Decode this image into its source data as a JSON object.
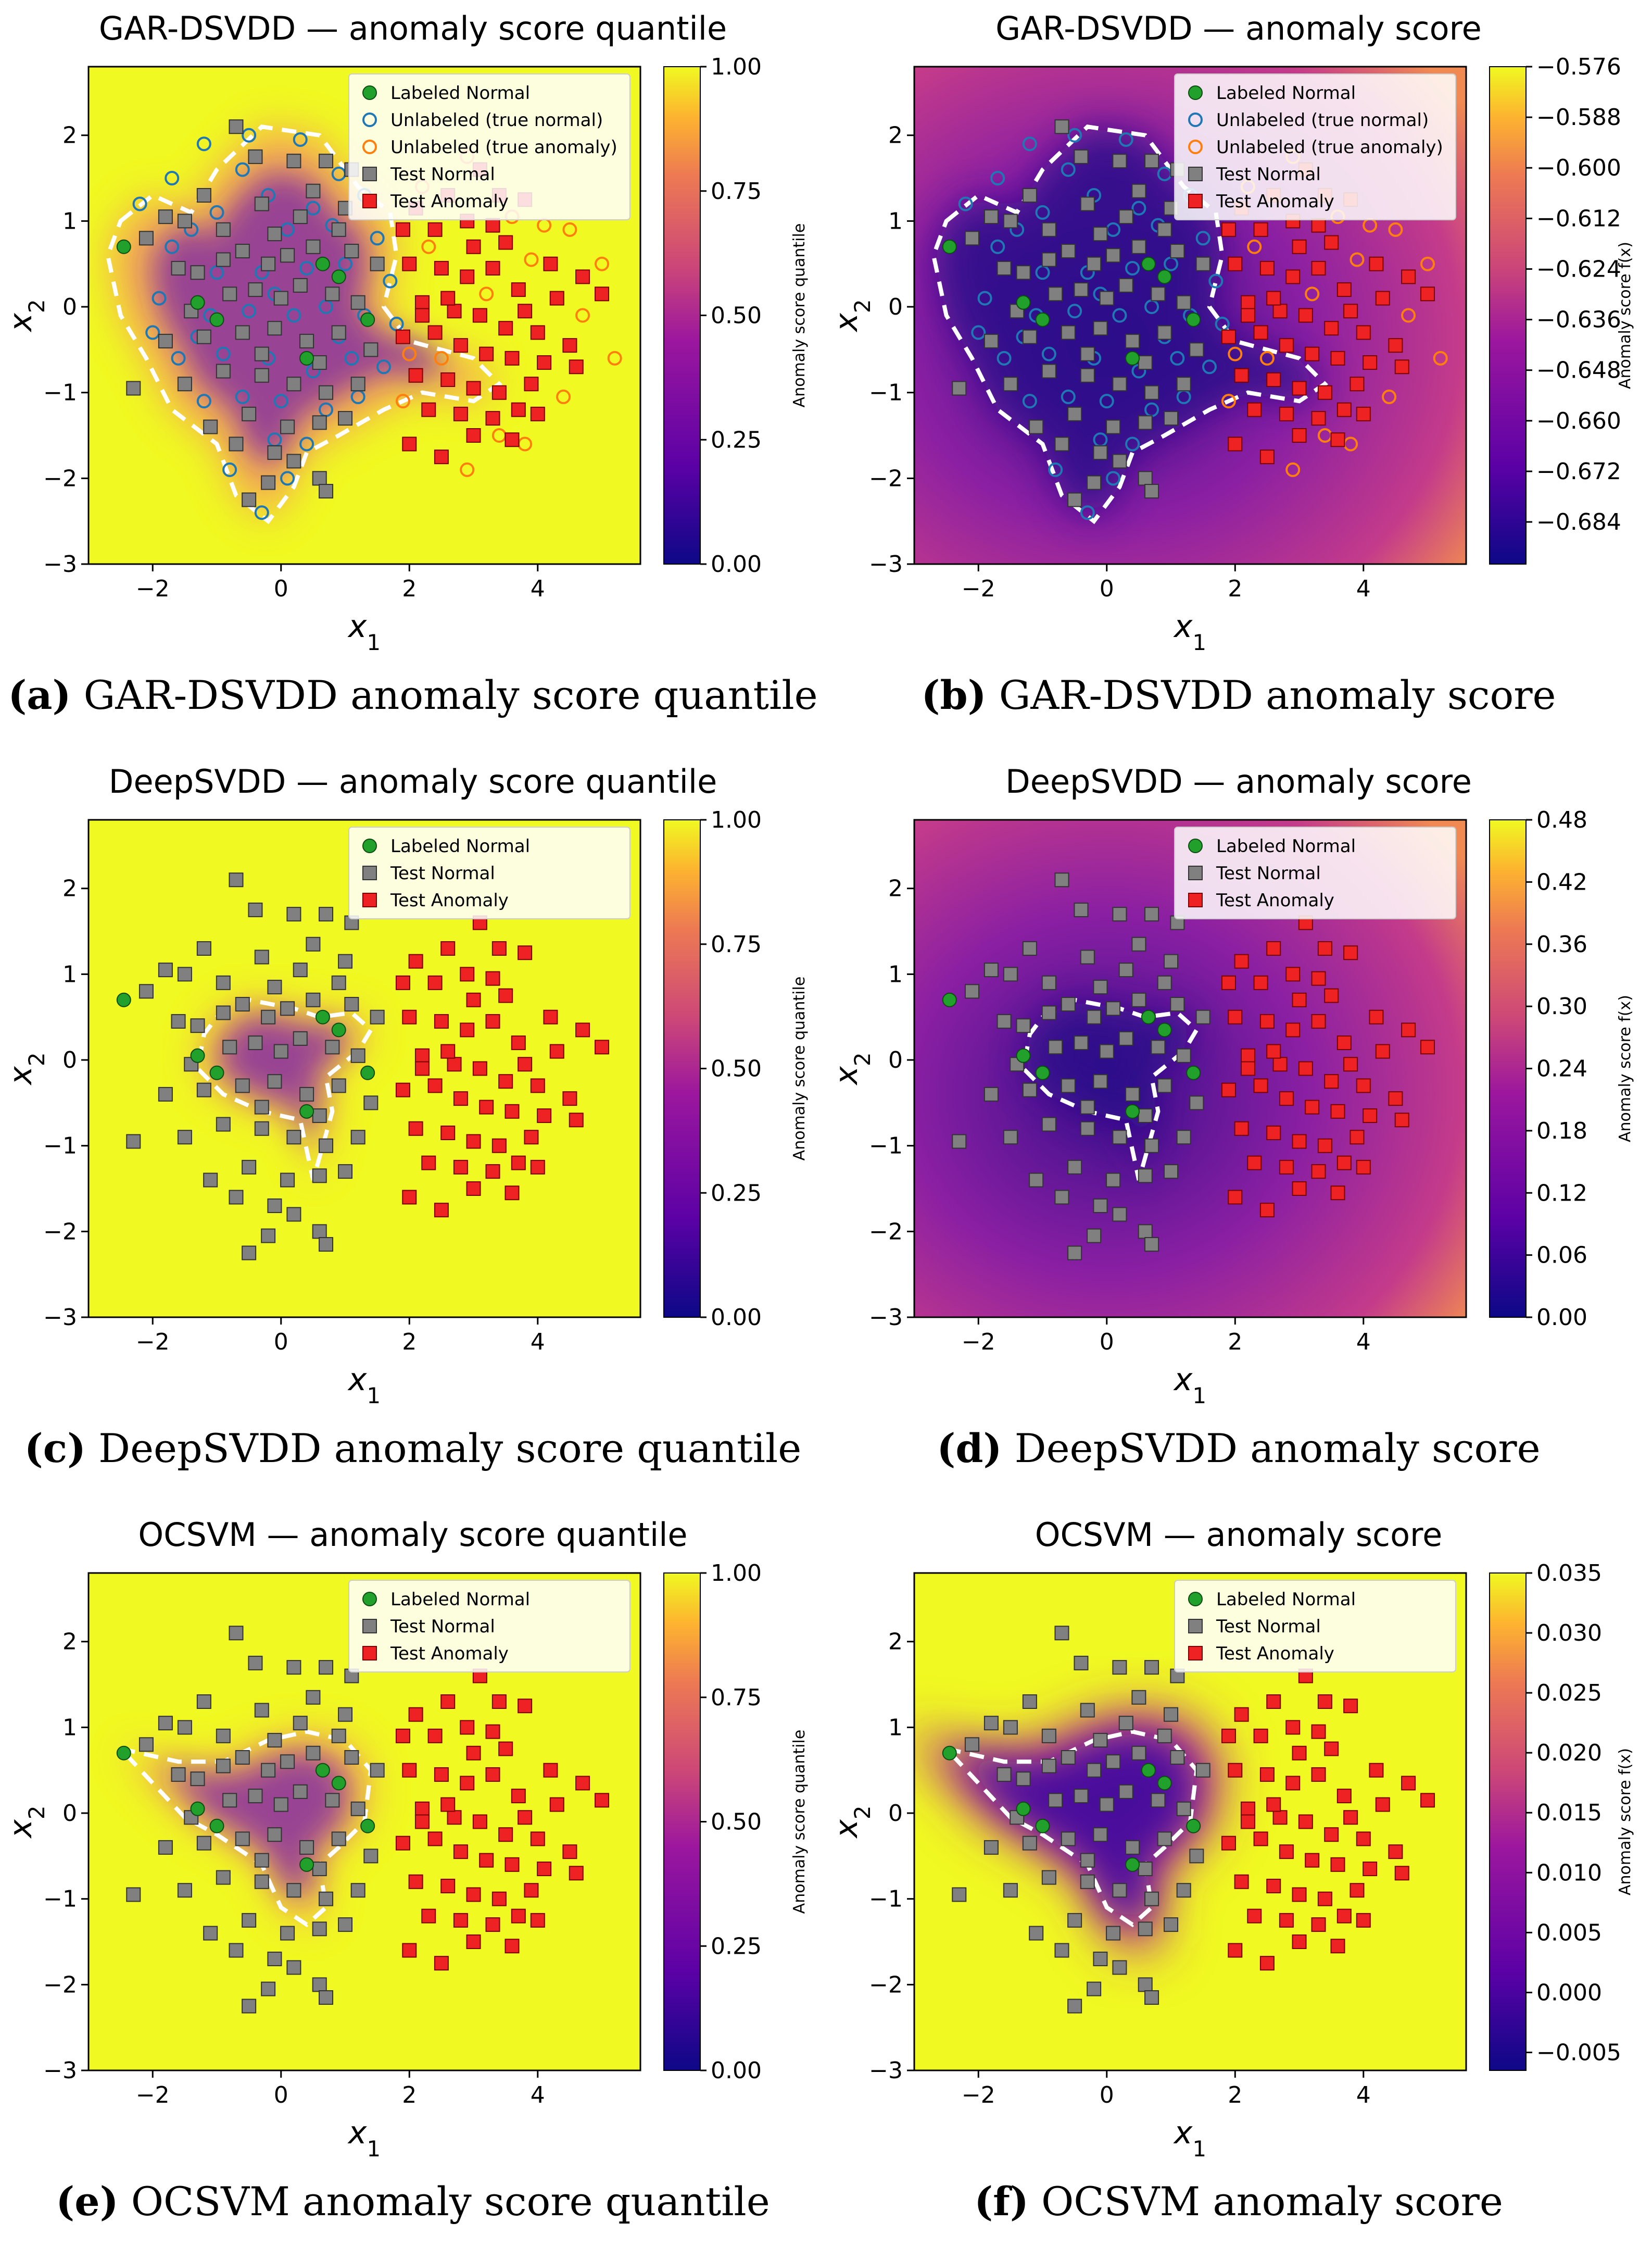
{
  "panels": [
    {
      "id": "a",
      "caption_letter": "a",
      "caption_text": " GAR-DSVDD anomaly score quantile",
      "title": "GAR-DSVDD — anomaly score quantile",
      "mode": "quantile",
      "unlabeled": true,
      "shape": "gar"
    },
    {
      "id": "b",
      "caption_letter": "b",
      "caption_text": " GAR-DSVDD anomaly score",
      "title": "GAR-DSVDD — anomaly score",
      "mode": "score",
      "unlabeled": true,
      "shape": "gar"
    },
    {
      "id": "c",
      "caption_letter": "c",
      "caption_text": " DeepSVDD anomaly score quantile",
      "title": "DeepSVDD — anomaly score quantile",
      "mode": "quantile",
      "unlabeled": false,
      "shape": "deep"
    },
    {
      "id": "d",
      "caption_letter": "d",
      "caption_text": " DeepSVDD anomaly score",
      "title": "DeepSVDD — anomaly score",
      "mode": "score",
      "unlabeled": false,
      "shape": "deep"
    },
    {
      "id": "e",
      "caption_letter": "e",
      "caption_text": " OCSVM anomaly score quantile",
      "title": "OCSVM — anomaly score quantile",
      "mode": "quantile",
      "unlabeled": false,
      "shape": "ocsvm"
    },
    {
      "id": "f",
      "caption_letter": "f",
      "caption_text": " OCSVM anomaly score",
      "title": "OCSVM — anomaly score",
      "mode": "score",
      "unlabeled": false,
      "shape": "ocsvm"
    }
  ],
  "chart_data": [
    {
      "type": "scatter",
      "title": "GAR-DSVDD — anomaly score quantile",
      "xlabel": "x1",
      "ylabel": "x2",
      "xlim": [
        -3,
        5.6
      ],
      "ylim": [
        -3,
        2.8
      ],
      "xticks": [
        -2,
        0,
        2,
        4
      ],
      "yticks": [
        -3,
        -2,
        -1,
        0,
        1,
        2
      ],
      "colorbar": {
        "label": "Anomaly score quantile",
        "range": [
          0,
          1
        ],
        "ticks": [
          "0.00",
          "0.25",
          "0.50",
          "0.75",
          "1.00"
        ]
      },
      "legend": [
        "Labeled Normal",
        "Unlabeled (true normal)",
        "Unlabeled (true anomaly)",
        "Test Normal",
        "Test Anomaly"
      ]
    },
    {
      "type": "scatter",
      "title": "GAR-DSVDD — anomaly score",
      "xlabel": "x1",
      "ylabel": "x2",
      "xlim": [
        -3,
        5.6
      ],
      "ylim": [
        -3,
        2.8
      ],
      "xticks": [
        -2,
        0,
        2,
        4
      ],
      "yticks": [
        -3,
        -2,
        -1,
        0,
        1,
        2
      ],
      "colorbar": {
        "label": "Anomaly score f(x)",
        "range": [
          -0.694,
          -0.576
        ],
        "ticks": [
          "−0.684",
          "−0.672",
          "−0.660",
          "−0.648",
          "−0.636",
          "−0.624",
          "−0.612",
          "−0.600",
          "−0.588",
          "−0.576"
        ]
      },
      "legend": [
        "Labeled Normal",
        "Unlabeled (true normal)",
        "Unlabeled (true anomaly)",
        "Test Normal",
        "Test Anomaly"
      ]
    },
    {
      "type": "scatter",
      "title": "DeepSVDD — anomaly score quantile",
      "xlabel": "x1",
      "ylabel": "x2",
      "xlim": [
        -3,
        5.6
      ],
      "ylim": [
        -3,
        2.8
      ],
      "xticks": [
        -2,
        0,
        2,
        4
      ],
      "yticks": [
        -3,
        -2,
        -1,
        0,
        1,
        2
      ],
      "colorbar": {
        "label": "Anomaly score quantile",
        "range": [
          0,
          1
        ],
        "ticks": [
          "0.00",
          "0.25",
          "0.50",
          "0.75",
          "1.00"
        ]
      },
      "legend": [
        "Labeled Normal",
        "Test Normal",
        "Test Anomaly"
      ]
    },
    {
      "type": "scatter",
      "title": "DeepSVDD — anomaly score",
      "xlabel": "x1",
      "ylabel": "x2",
      "xlim": [
        -3,
        5.6
      ],
      "ylim": [
        -3,
        2.8
      ],
      "xticks": [
        -2,
        0,
        2,
        4
      ],
      "yticks": [
        -3,
        -2,
        -1,
        0,
        1,
        2
      ],
      "colorbar": {
        "label": "Anomaly score f(x)",
        "range": [
          0,
          0.48
        ],
        "ticks": [
          "0.00",
          "0.06",
          "0.12",
          "0.18",
          "0.24",
          "0.30",
          "0.36",
          "0.42",
          "0.48"
        ]
      },
      "legend": [
        "Labeled Normal",
        "Test Normal",
        "Test Anomaly"
      ]
    },
    {
      "type": "scatter",
      "title": "OCSVM — anomaly score quantile",
      "xlabel": "x1",
      "ylabel": "x2",
      "xlim": [
        -3,
        5.6
      ],
      "ylim": [
        -3,
        2.8
      ],
      "xticks": [
        -2,
        0,
        2,
        4
      ],
      "yticks": [
        -3,
        -2,
        -1,
        0,
        1,
        2
      ],
      "colorbar": {
        "label": "Anomaly score quantile",
        "range": [
          0,
          1
        ],
        "ticks": [
          "0.00",
          "0.25",
          "0.50",
          "0.75",
          "1.00"
        ]
      },
      "legend": [
        "Labeled Normal",
        "Test Normal",
        "Test Anomaly"
      ]
    },
    {
      "type": "scatter",
      "title": "OCSVM — anomaly score",
      "xlabel": "x1",
      "ylabel": "x2",
      "xlim": [
        -3,
        5.6
      ],
      "ylim": [
        -3,
        2.8
      ],
      "xticks": [
        -2,
        0,
        2,
        4
      ],
      "yticks": [
        -3,
        -2,
        -1,
        0,
        1,
        2
      ],
      "colorbar": {
        "label": "Anomaly score f(x)",
        "range": [
          -0.0065,
          0.035
        ],
        "ticks": [
          "−0.005",
          "0.000",
          "0.005",
          "0.010",
          "0.015",
          "0.020",
          "0.025",
          "0.030",
          "0.035"
        ]
      },
      "legend": [
        "Labeled Normal",
        "Test Normal",
        "Test Anomaly"
      ]
    }
  ],
  "points": {
    "labeled_normal": [
      [
        -2.45,
        0.7
      ],
      [
        -1.3,
        0.05
      ],
      [
        0.4,
        -0.6
      ],
      [
        0.65,
        0.5
      ],
      [
        1.35,
        -0.15
      ],
      [
        -1.0,
        -0.15
      ],
      [
        0.9,
        0.35
      ]
    ],
    "test_normal": [
      [
        -0.7,
        2.1
      ],
      [
        -1.8,
        1.05
      ],
      [
        -2.1,
        0.8
      ],
      [
        -1.5,
        1.0
      ],
      [
        -1.2,
        1.3
      ],
      [
        -0.4,
        1.75
      ],
      [
        0.2,
        1.7
      ],
      [
        0.7,
        1.7
      ],
      [
        -0.3,
        1.2
      ],
      [
        0.3,
        1.05
      ],
      [
        1.1,
        1.6
      ],
      [
        1.0,
        1.15
      ],
      [
        -1.6,
        0.45
      ],
      [
        -0.9,
        0.55
      ],
      [
        -0.6,
        0.65
      ],
      [
        -0.2,
        0.5
      ],
      [
        0.1,
        0.6
      ],
      [
        0.5,
        0.7
      ],
      [
        1.1,
        0.65
      ],
      [
        1.5,
        0.5
      ],
      [
        -1.4,
        -0.05
      ],
      [
        -0.8,
        0.15
      ],
      [
        -0.4,
        0.2
      ],
      [
        0.0,
        0.1
      ],
      [
        0.3,
        0.25
      ],
      [
        0.8,
        0.15
      ],
      [
        1.2,
        0.05
      ],
      [
        -1.8,
        -0.4
      ],
      [
        -1.2,
        -0.35
      ],
      [
        -0.6,
        -0.3
      ],
      [
        -0.1,
        -0.25
      ],
      [
        0.4,
        -0.4
      ],
      [
        0.9,
        -0.3
      ],
      [
        1.4,
        -0.5
      ],
      [
        -2.3,
        -0.95
      ],
      [
        -1.5,
        -0.9
      ],
      [
        -0.9,
        -0.75
      ],
      [
        -0.3,
        -0.8
      ],
      [
        0.2,
        -0.9
      ],
      [
        0.7,
        -1.0
      ],
      [
        1.2,
        -0.9
      ],
      [
        -1.1,
        -1.4
      ],
      [
        -0.5,
        -1.25
      ],
      [
        0.1,
        -1.4
      ],
      [
        0.6,
        -1.35
      ],
      [
        1.0,
        -1.3
      ],
      [
        -0.7,
        -1.6
      ],
      [
        -0.1,
        -1.7
      ],
      [
        0.6,
        -2.0
      ],
      [
        0.7,
        -2.15
      ],
      [
        -0.5,
        -2.25
      ],
      [
        -0.2,
        -2.05
      ],
      [
        0.2,
        -1.8
      ],
      [
        -0.9,
        0.9
      ],
      [
        0.5,
        1.35
      ],
      [
        -0.3,
        -0.55
      ],
      [
        0.6,
        -0.65
      ],
      [
        -1.3,
        0.4
      ],
      [
        -0.1,
        0.85
      ],
      [
        0.9,
        0.9
      ]
    ],
    "test_anomaly": [
      [
        3.1,
        1.6
      ],
      [
        2.6,
        1.3
      ],
      [
        2.1,
        1.15
      ],
      [
        3.4,
        1.3
      ],
      [
        3.8,
        1.25
      ],
      [
        2.4,
        0.9
      ],
      [
        3.0,
        0.7
      ],
      [
        3.5,
        0.75
      ],
      [
        4.2,
        0.5
      ],
      [
        4.7,
        0.35
      ],
      [
        5.0,
        0.15
      ],
      [
        2.0,
        0.5
      ],
      [
        2.5,
        0.45
      ],
      [
        2.9,
        0.35
      ],
      [
        3.3,
        0.45
      ],
      [
        3.7,
        0.2
      ],
      [
        4.3,
        0.1
      ],
      [
        2.2,
        0.05
      ],
      [
        2.7,
        -0.05
      ],
      [
        3.1,
        -0.1
      ],
      [
        3.5,
        -0.25
      ],
      [
        4.0,
        -0.3
      ],
      [
        4.5,
        -0.45
      ],
      [
        1.9,
        -0.35
      ],
      [
        2.4,
        -0.3
      ],
      [
        2.8,
        -0.45
      ],
      [
        3.2,
        -0.55
      ],
      [
        3.6,
        -0.6
      ],
      [
        4.1,
        -0.65
      ],
      [
        4.6,
        -0.7
      ],
      [
        2.1,
        -0.8
      ],
      [
        2.6,
        -0.85
      ],
      [
        3.0,
        -0.95
      ],
      [
        3.4,
        -1.0
      ],
      [
        3.9,
        -0.9
      ],
      [
        2.3,
        -1.2
      ],
      [
        2.8,
        -1.25
      ],
      [
        3.3,
        -1.3
      ],
      [
        3.7,
        -1.2
      ],
      [
        2.0,
        -1.6
      ],
      [
        2.5,
        -1.75
      ],
      [
        3.0,
        -1.5
      ],
      [
        3.6,
        -1.55
      ],
      [
        4.0,
        -1.25
      ],
      [
        1.9,
        0.9
      ],
      [
        2.9,
        1.0
      ],
      [
        3.3,
        0.95
      ],
      [
        2.2,
        -0.1
      ],
      [
        3.8,
        -0.05
      ],
      [
        2.6,
        0.1
      ]
    ],
    "unlabeled_normal": [
      [
        -1.7,
        1.5
      ],
      [
        -1.2,
        1.9
      ],
      [
        -0.5,
        2.0
      ],
      [
        0.3,
        1.95
      ],
      [
        0.9,
        1.55
      ],
      [
        -1.0,
        1.1
      ],
      [
        -0.2,
        1.3
      ],
      [
        0.5,
        1.15
      ],
      [
        1.3,
        1.3
      ],
      [
        -1.7,
        0.7
      ],
      [
        -1.0,
        0.4
      ],
      [
        -0.3,
        0.4
      ],
      [
        0.4,
        0.45
      ],
      [
        1.0,
        0.5
      ],
      [
        1.5,
        0.8
      ],
      [
        -1.9,
        0.1
      ],
      [
        -1.1,
        -0.1
      ],
      [
        -0.5,
        -0.05
      ],
      [
        0.2,
        -0.1
      ],
      [
        0.7,
        0.0
      ],
      [
        1.3,
        -0.1
      ],
      [
        1.8,
        -0.2
      ],
      [
        -1.6,
        -0.6
      ],
      [
        -0.9,
        -0.55
      ],
      [
        -0.2,
        -0.6
      ],
      [
        0.5,
        -0.75
      ],
      [
        1.1,
        -0.6
      ],
      [
        1.6,
        -0.7
      ],
      [
        -1.2,
        -1.1
      ],
      [
        -0.6,
        -1.05
      ],
      [
        0.0,
        -1.1
      ],
      [
        0.7,
        -1.2
      ],
      [
        1.2,
        -1.05
      ],
      [
        -0.8,
        -1.9
      ],
      [
        -0.1,
        -1.55
      ],
      [
        0.4,
        -1.6
      ],
      [
        -0.3,
        -2.4
      ],
      [
        0.1,
        -2.0
      ],
      [
        -1.4,
        0.9
      ],
      [
        -0.6,
        1.6
      ],
      [
        0.1,
        0.9
      ],
      [
        0.8,
        0.95
      ],
      [
        -2.2,
        1.2
      ],
      [
        1.7,
        0.3
      ],
      [
        -1.3,
        -0.35
      ],
      [
        -0.1,
        0.15
      ],
      [
        0.9,
        -0.35
      ],
      [
        -2.0,
        -0.3
      ]
    ],
    "unlabeled_anomaly": [
      [
        2.2,
        1.4
      ],
      [
        2.9,
        1.75
      ],
      [
        3.6,
        1.05
      ],
      [
        4.5,
        0.9
      ],
      [
        5.0,
        0.5
      ],
      [
        2.3,
        0.7
      ],
      [
        3.9,
        0.55
      ],
      [
        4.7,
        -0.1
      ],
      [
        5.2,
        -0.6
      ],
      [
        2.0,
        -0.55
      ],
      [
        3.4,
        -1.5
      ],
      [
        4.4,
        -1.05
      ],
      [
        2.9,
        -1.9
      ],
      [
        3.8,
        -1.6
      ],
      [
        1.9,
        -1.1
      ],
      [
        4.1,
        0.95
      ],
      [
        2.5,
        -0.6
      ],
      [
        3.2,
        0.15
      ]
    ]
  }
}
